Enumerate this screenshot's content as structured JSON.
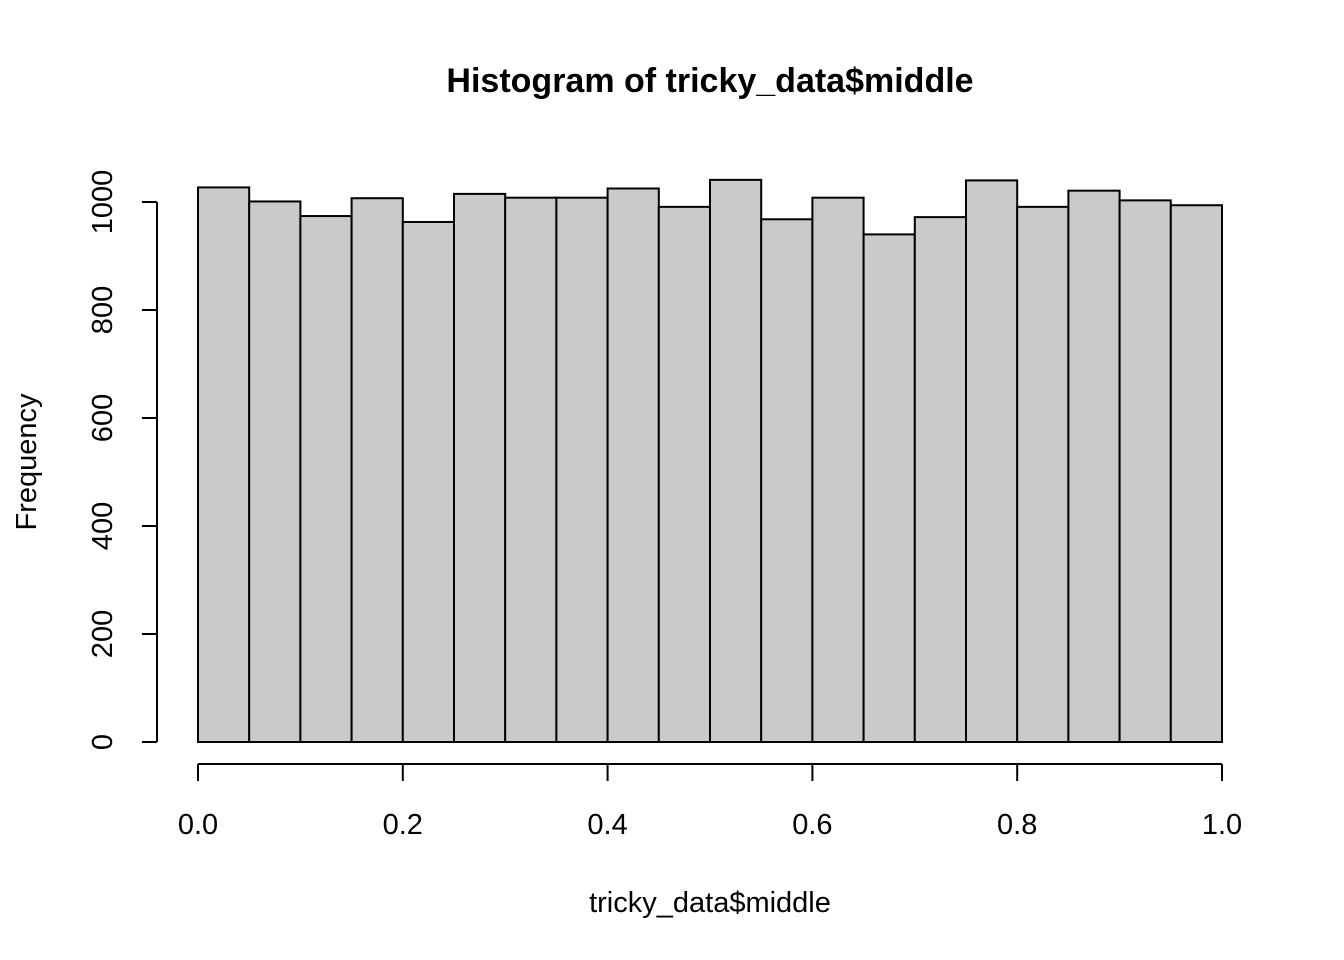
{
  "chart_data": {
    "type": "bar",
    "title": "Histogram of tricky_data$middle",
    "xlabel": "tricky_data$middle",
    "ylabel": "Frequency",
    "xlim": [
      0,
      1
    ],
    "ylim": [
      0,
      1040
    ],
    "bin_width": 0.05,
    "bin_edges": [
      0,
      0.05,
      0.1,
      0.15,
      0.2,
      0.25,
      0.3,
      0.35,
      0.4,
      0.45,
      0.5,
      0.55,
      0.6,
      0.65,
      0.7,
      0.75,
      0.8,
      0.85,
      0.9,
      0.95,
      1.0
    ],
    "values": [
      1027,
      1001,
      974,
      1007,
      963,
      1015,
      1008,
      1008,
      1025,
      991,
      1041,
      968,
      1008,
      940,
      972,
      1040,
      991,
      1021,
      1003,
      994
    ],
    "x_ticks": [
      0,
      0.2,
      0.4,
      0.6,
      0.8,
      1.0
    ],
    "x_tick_labels": [
      "0.0",
      "0.2",
      "0.4",
      "0.6",
      "0.8",
      "1.0"
    ],
    "y_ticks": [
      0,
      200,
      400,
      600,
      800,
      1000
    ],
    "y_tick_labels": [
      "0",
      "200",
      "400",
      "600",
      "800",
      "1000"
    ],
    "bar_fill": "#cacaca",
    "bar_stroke": "#000000",
    "grid": false
  }
}
